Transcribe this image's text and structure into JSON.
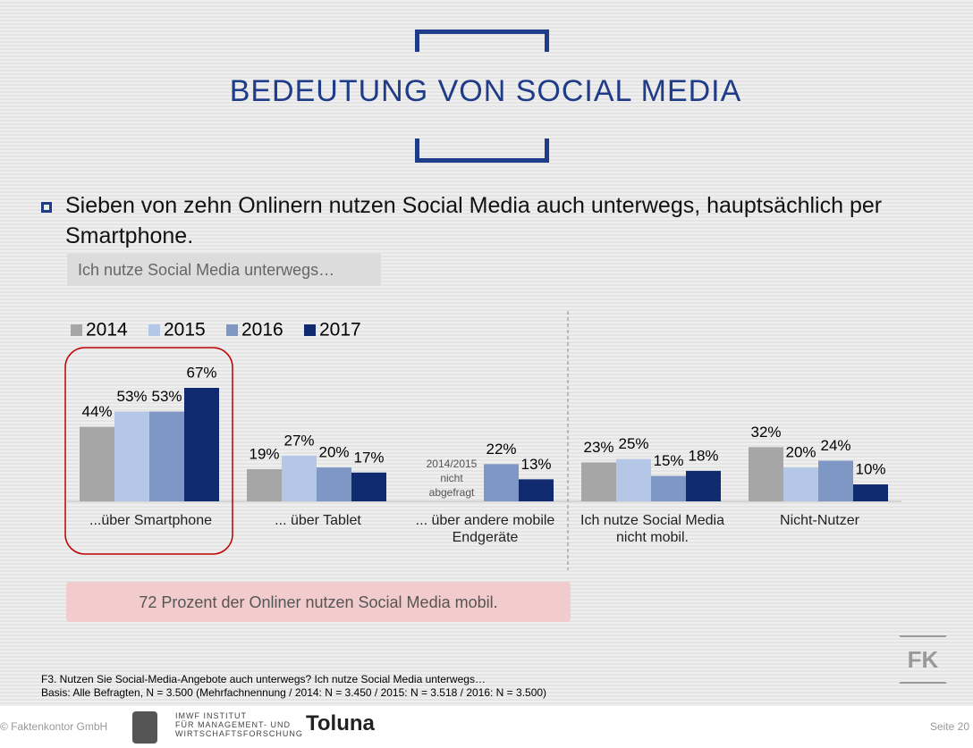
{
  "header": {
    "title": "BEDEUTUNG VON SOCIAL MEDIA"
  },
  "headline": "Sieben von zehn Onlinern nutzen Social Media auch unterwegs, hauptsächlich per Smartphone.",
  "chart_data": {
    "type": "bar",
    "subtitle": "Ich nutze Social Media unterwegs…",
    "categories": [
      "...über Smartphone",
      "... über Tablet",
      "... über andere mobile\nEndgeräte",
      "Ich nutze Social Media\nnicht mobil.",
      "Nicht-Nutzer"
    ],
    "series": [
      {
        "name": "2014",
        "color": "#a6a6a6",
        "values": [
          44,
          19,
          null,
          23,
          32
        ],
        "value_labels": [
          "44%",
          "19%",
          null,
          "23%",
          "32%"
        ]
      },
      {
        "name": "2015",
        "color": "#b4c7e7",
        "values": [
          53,
          27,
          null,
          25,
          20
        ],
        "value_labels": [
          "53%",
          "27%",
          null,
          "25%",
          "20%"
        ]
      },
      {
        "name": "2016",
        "color": "#7f97c5",
        "values": [
          53,
          20,
          22,
          15,
          24
        ],
        "value_labels": [
          "53%",
          "20%",
          "22%",
          "15%",
          "24%"
        ]
      },
      {
        "name": "2017",
        "color": "#0f2a6e",
        "values": [
          67,
          17,
          13,
          18,
          10
        ],
        "value_labels": [
          "67%",
          "17%",
          "13%",
          "18%",
          "10%"
        ]
      }
    ],
    "annotation": "2014/2015\nnicht\nabgefragt",
    "legend": "top-left"
  },
  "callout": "72 Prozent der Onliner nutzen Social Media mobil.",
  "footnotes": [
    "F3. Nutzen Sie Social-Media-Angebote auch unterwegs? Ich nutze Social Media unterwegs…",
    "Basis: Alle Befragten, N = 3.500 (Mehrfachnennung / 2014: N = 3.450 / 2015: N = 3.518 / 2016: N = 3.500)"
  ],
  "footer": {
    "copyright": "© Faktenkontor GmbH",
    "page": "Seite 20",
    "logo_imwf": [
      "IMWF INSTITUT",
      "FÜR MANAGEMENT- UND",
      "WIRTSCHAFTSFORSCHUNG"
    ],
    "logo_toluna": "Toluna",
    "logo_fk": "FK"
  }
}
